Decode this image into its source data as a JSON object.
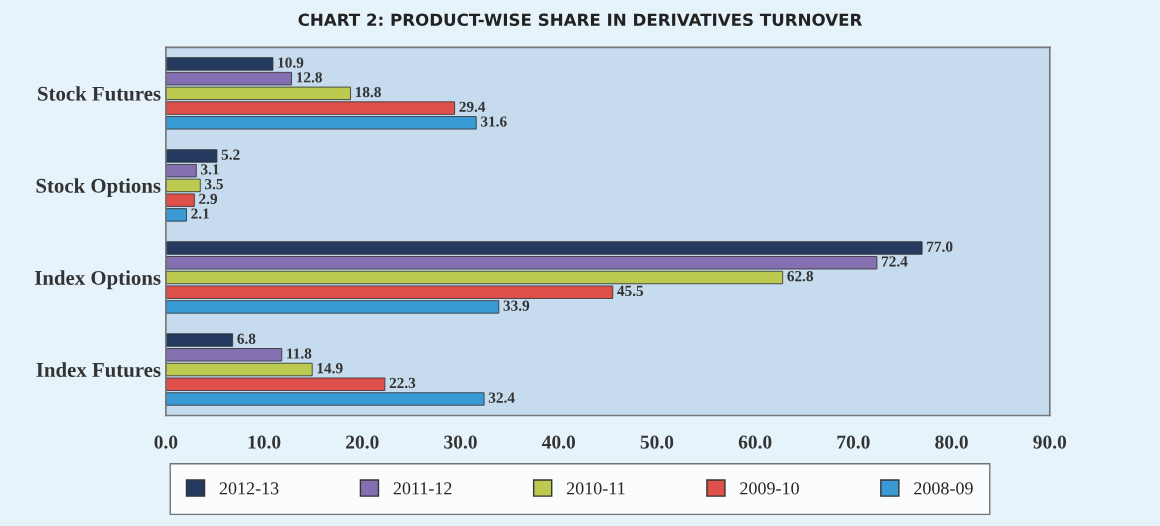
{
  "chart_data": {
    "type": "bar",
    "orientation": "horizontal",
    "title": "CHART 2: PRODUCT-WISE SHARE IN DERIVATIVES TURNOVER",
    "categories": [
      "Stock Futures",
      "Stock Options",
      "Index Options",
      "Index Futures"
    ],
    "series": [
      {
        "name": "2012-13",
        "color": "#243a5e",
        "values": [
          10.9,
          5.2,
          77.0,
          6.8
        ],
        "value_labels": [
          "10.9",
          "5.2",
          "77.0",
          "6.8"
        ]
      },
      {
        "name": "2011-12",
        "color": "#8470b0",
        "values": [
          12.8,
          3.1,
          72.4,
          11.8
        ],
        "value_labels": [
          "12.8",
          "3.1",
          "72.4",
          "11.8"
        ]
      },
      {
        "name": "2010-11",
        "color": "#bccb4f",
        "values": [
          18.8,
          3.5,
          62.8,
          14.9
        ],
        "value_labels": [
          "18.8",
          "3.5",
          "62.8",
          "14.9"
        ]
      },
      {
        "name": "2009-10",
        "color": "#e0504a",
        "values": [
          29.4,
          2.9,
          45.5,
          22.3
        ],
        "value_labels": [
          "29.4",
          "2.9",
          "45.5",
          "22.3"
        ]
      },
      {
        "name": "2008-09",
        "color": "#3a9ad6",
        "values": [
          31.6,
          2.1,
          33.9,
          32.4
        ],
        "value_labels": [
          "31.6",
          "2.1",
          "33.9",
          "32.4"
        ]
      }
    ],
    "xlim": [
      0,
      90
    ],
    "xticks": [
      {
        "value": 0,
        "label": "0.0"
      },
      {
        "value": 10,
        "label": "10.0"
      },
      {
        "value": 20,
        "label": "20.0"
      },
      {
        "value": 30,
        "label": "30.0"
      },
      {
        "value": 40,
        "label": "40.0"
      },
      {
        "value": 50,
        "label": "50.0"
      },
      {
        "value": 60,
        "label": "60.0"
      },
      {
        "value": 70,
        "label": "70.0"
      },
      {
        "value": 80,
        "label": "80.0"
      },
      {
        "value": 90,
        "label": "90.0"
      }
    ],
    "legend": "bottom",
    "grid": false
  }
}
